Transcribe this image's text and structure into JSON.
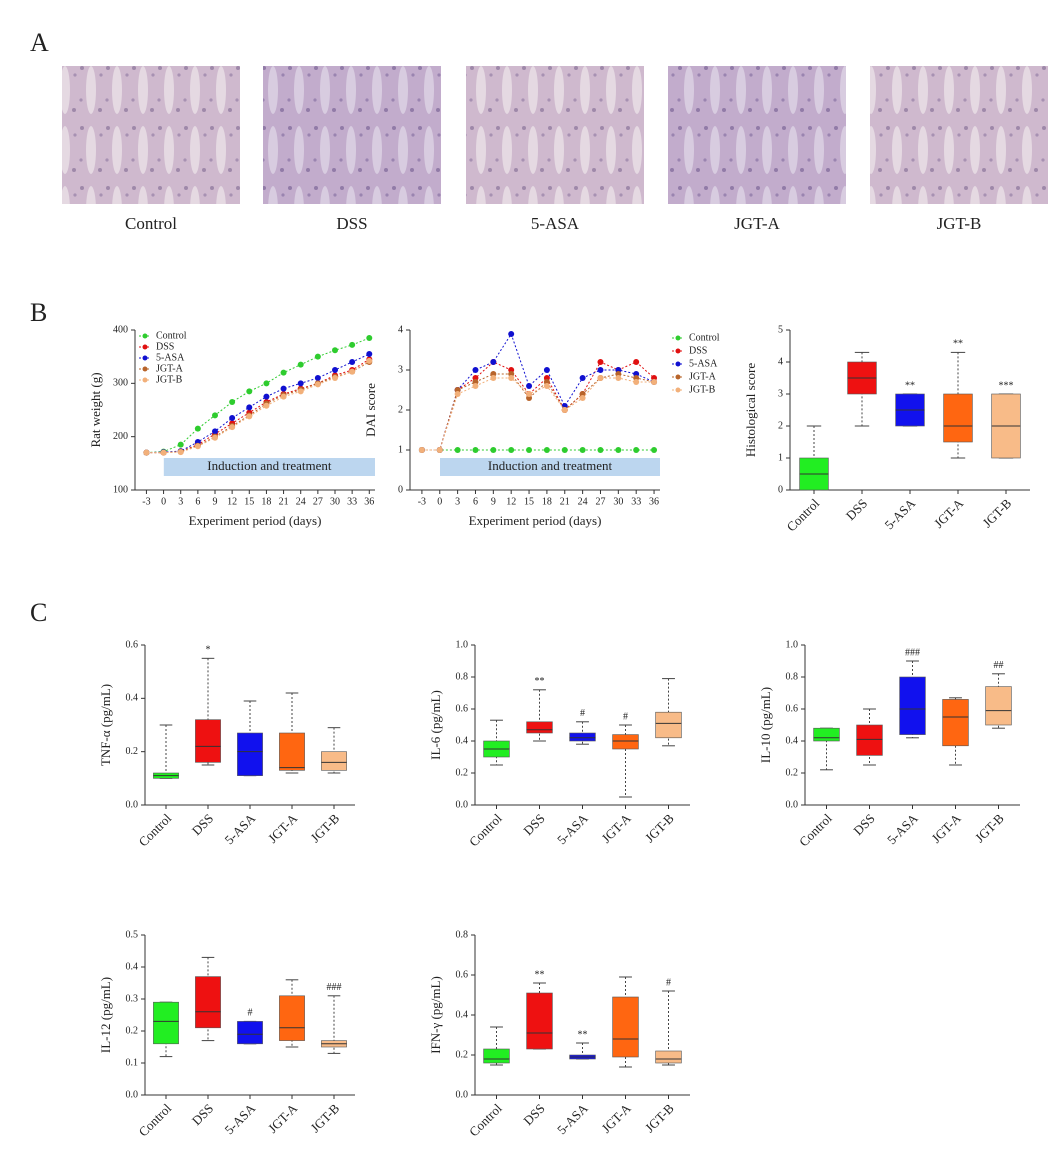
{
  "panel_labels": {
    "a": "A",
    "b": "B",
    "c": "C"
  },
  "histology": [
    {
      "label": "Control"
    },
    {
      "label": "DSS"
    },
    {
      "label": "5-ASA"
    },
    {
      "label": "JGT-A"
    },
    {
      "label": "JGT-B"
    }
  ],
  "chart_data": [
    {
      "type": "line",
      "ylabel": "Rat weight (g)",
      "xlabel": "Experiment period (days)",
      "annotation": "Induction and treatment",
      "x": [
        -3,
        0,
        3,
        6,
        9,
        12,
        15,
        18,
        21,
        24,
        27,
        30,
        33,
        36
      ],
      "xlim": [
        -5,
        37
      ],
      "xticks": [
        -3,
        0,
        3,
        6,
        9,
        12,
        15,
        18,
        21,
        24,
        27,
        30,
        33,
        36
      ],
      "ylim": [
        100,
        400
      ],
      "yticks": [
        100,
        200,
        300,
        400
      ],
      "legend": "upper left",
      "series": [
        {
          "name": "Control",
          "color": "#2ecc2e",
          "values": [
            170,
            172,
            185,
            215,
            240,
            265,
            285,
            300,
            320,
            335,
            350,
            362,
            372,
            385
          ]
        },
        {
          "name": "DSS",
          "color": "#e01010",
          "values": [
            170,
            170,
            172,
            185,
            205,
            225,
            245,
            265,
            280,
            290,
            300,
            315,
            325,
            345
          ]
        },
        {
          "name": "5-ASA",
          "color": "#1010d0",
          "values": [
            170,
            171,
            173,
            190,
            210,
            235,
            255,
            275,
            290,
            300,
            310,
            325,
            340,
            355
          ]
        },
        {
          "name": "JGT-A",
          "color": "#b8642a",
          "values": [
            170,
            170,
            172,
            183,
            200,
            220,
            240,
            262,
            278,
            288,
            300,
            312,
            322,
            340
          ]
        },
        {
          "name": "JGT-B",
          "color": "#f2b07a",
          "values": [
            170,
            170,
            171,
            182,
            198,
            218,
            238,
            258,
            275,
            285,
            298,
            310,
            322,
            342
          ]
        }
      ]
    },
    {
      "type": "line",
      "ylabel": "DAI score",
      "xlabel": "Experiment period (days)",
      "annotation": "Induction and treatment",
      "x": [
        -3,
        0,
        3,
        6,
        9,
        12,
        15,
        18,
        21,
        24,
        27,
        30,
        33,
        36
      ],
      "xlim": [
        -5,
        37
      ],
      "xticks": [
        -3,
        0,
        3,
        6,
        9,
        12,
        15,
        18,
        21,
        24,
        27,
        30,
        33,
        36
      ],
      "ylim": [
        0,
        4
      ],
      "yticks": [
        0,
        1,
        2,
        3,
        4
      ],
      "legend": "right",
      "series": [
        {
          "name": "Control",
          "color": "#2ecc2e",
          "values": [
            1,
            1,
            1,
            1,
            1,
            1,
            1,
            1,
            1,
            1,
            1,
            1,
            1,
            1
          ]
        },
        {
          "name": "DSS",
          "color": "#e01010",
          "values": [
            1,
            1,
            2.5,
            2.8,
            3.2,
            3.0,
            2.4,
            2.8,
            2.0,
            2.4,
            3.2,
            3.0,
            3.2,
            2.8
          ]
        },
        {
          "name": "5-ASA",
          "color": "#1010d0",
          "values": [
            1,
            1,
            2.5,
            3.0,
            3.2,
            3.9,
            2.6,
            3.0,
            2.1,
            2.8,
            3.0,
            3.0,
            2.9,
            2.7
          ]
        },
        {
          "name": "JGT-A",
          "color": "#b8642a",
          "values": [
            1,
            1,
            2.5,
            2.7,
            2.9,
            2.9,
            2.3,
            2.7,
            2.0,
            2.4,
            2.8,
            2.9,
            2.8,
            2.7
          ]
        },
        {
          "name": "JGT-B",
          "color": "#f2b07a",
          "values": [
            1,
            1,
            2.4,
            2.6,
            2.8,
            2.8,
            2.4,
            2.6,
            2.0,
            2.3,
            2.8,
            2.8,
            2.7,
            2.7
          ]
        }
      ]
    },
    {
      "type": "box",
      "ylabel": "Histological score",
      "categories": [
        "Control",
        "DSS",
        "5-ASA",
        "JGT-A",
        "JGT-B"
      ],
      "colors": [
        "#22ee22",
        "#ee1111",
        "#1111ee",
        "#ff6611",
        "#f8bb88"
      ],
      "ylim": [
        0,
        5
      ],
      "yticks": [
        0,
        1,
        2,
        3,
        4,
        5
      ],
      "boxes": [
        {
          "min": 0,
          "q1": 0,
          "median": 0.5,
          "q3": 1,
          "max": 2
        },
        {
          "min": 2,
          "q1": 3,
          "median": 3.5,
          "q3": 4,
          "max": 4.3
        },
        {
          "min": 2,
          "q1": 2,
          "median": 2.5,
          "q3": 3,
          "max": 3,
          "mark": "**"
        },
        {
          "min": 1,
          "q1": 1.5,
          "median": 2,
          "q3": 3,
          "max": 4.3,
          "mark": "**"
        },
        {
          "min": 1,
          "q1": 1,
          "median": 2,
          "q3": 3,
          "max": 3,
          "mark": "***"
        }
      ]
    },
    {
      "type": "box",
      "ylabel": "TNF-α (pg/mL)",
      "categories": [
        "Control",
        "DSS",
        "5-ASA",
        "JGT-A",
        "JGT-B"
      ],
      "colors": [
        "#22ee22",
        "#ee1111",
        "#1111ee",
        "#ff6611",
        "#f8bb88"
      ],
      "ylim": [
        0,
        0.6
      ],
      "yticks": [
        {
          "value": 0,
          "label": "0.0"
        },
        {
          "value": 0.2,
          "label": "0.2"
        },
        {
          "value": 0.4,
          "label": "0.4"
        },
        {
          "value": 0.6,
          "label": "0.6"
        }
      ],
      "boxes": [
        {
          "min": 0.1,
          "q1": 0.1,
          "median": 0.11,
          "q3": 0.12,
          "max": 0.3
        },
        {
          "min": 0.15,
          "q1": 0.16,
          "median": 0.22,
          "q3": 0.32,
          "max": 0.55,
          "mark": "*"
        },
        {
          "min": 0.11,
          "q1": 0.11,
          "median": 0.2,
          "q3": 0.27,
          "max": 0.39
        },
        {
          "min": 0.12,
          "q1": 0.13,
          "median": 0.14,
          "q3": 0.27,
          "max": 0.42
        },
        {
          "min": 0.12,
          "q1": 0.13,
          "median": 0.16,
          "q3": 0.2,
          "max": 0.29
        }
      ]
    },
    {
      "type": "box",
      "ylabel": "IL-6 (pg/mL)",
      "categories": [
        "Control",
        "DSS",
        "5-ASA",
        "JGT-A",
        "JGT-B"
      ],
      "colors": [
        "#22ee22",
        "#ee1111",
        "#1111ee",
        "#ff6611",
        "#f8bb88"
      ],
      "ylim": [
        0,
        1
      ],
      "yticks": [
        {
          "value": 0,
          "label": "0.0"
        },
        0.2,
        0.4,
        0.6,
        0.8,
        {
          "value": 1,
          "label": "1.0"
        }
      ],
      "boxes": [
        {
          "min": 0.25,
          "q1": 0.3,
          "median": 0.35,
          "q3": 0.4,
          "max": 0.53
        },
        {
          "min": 0.4,
          "q1": 0.45,
          "median": 0.47,
          "q3": 0.52,
          "max": 0.72,
          "mark": "**"
        },
        {
          "min": 0.38,
          "q1": 0.4,
          "median": 0.42,
          "q3": 0.45,
          "max": 0.52,
          "mark": "#"
        },
        {
          "min": 0.05,
          "q1": 0.35,
          "median": 0.4,
          "q3": 0.44,
          "max": 0.5,
          "mark": "#"
        },
        {
          "min": 0.37,
          "q1": 0.42,
          "median": 0.51,
          "q3": 0.58,
          "max": 0.79
        }
      ]
    },
    {
      "type": "box",
      "ylabel": "IL-10 (pg/mL)",
      "categories": [
        "Control",
        "DSS",
        "5-ASA",
        "JGT-A",
        "JGT-B"
      ],
      "colors": [
        "#22ee22",
        "#ee1111",
        "#1111ee",
        "#ff6611",
        "#f8bb88"
      ],
      "ylim": [
        0,
        1
      ],
      "yticks": [
        {
          "value": 0,
          "label": "0.0"
        },
        0.2,
        0.4,
        0.6,
        0.8,
        {
          "value": 1,
          "label": "1.0"
        }
      ],
      "boxes": [
        {
          "min": 0.22,
          "q1": 0.4,
          "median": 0.42,
          "q3": 0.48,
          "max": 0.48
        },
        {
          "min": 0.25,
          "q1": 0.31,
          "median": 0.41,
          "q3": 0.5,
          "max": 0.6
        },
        {
          "min": 0.42,
          "q1": 0.44,
          "median": 0.6,
          "q3": 0.8,
          "max": 0.9,
          "mark": "###"
        },
        {
          "min": 0.25,
          "q1": 0.37,
          "median": 0.55,
          "q3": 0.66,
          "max": 0.67
        },
        {
          "min": 0.48,
          "q1": 0.5,
          "median": 0.59,
          "q3": 0.74,
          "max": 0.82,
          "mark": "##"
        }
      ]
    },
    {
      "type": "box",
      "ylabel": "IL-12 (pg/mL)",
      "categories": [
        "Control",
        "DSS",
        "5-ASA",
        "JGT-A",
        "JGT-B"
      ],
      "colors": [
        "#22ee22",
        "#ee1111",
        "#1111ee",
        "#ff6611",
        "#f8bb88"
      ],
      "ylim": [
        0,
        0.5
      ],
      "yticks": [
        {
          "value": 0,
          "label": "0.0"
        },
        0.1,
        0.2,
        0.3,
        0.4,
        0.5
      ],
      "boxes": [
        {
          "min": 0.12,
          "q1": 0.16,
          "median": 0.23,
          "q3": 0.29,
          "max": 0.29
        },
        {
          "min": 0.17,
          "q1": 0.21,
          "median": 0.26,
          "q3": 0.37,
          "max": 0.43
        },
        {
          "min": 0.16,
          "q1": 0.16,
          "median": 0.19,
          "q3": 0.23,
          "max": 0.23,
          "mark": "#"
        },
        {
          "min": 0.15,
          "q1": 0.17,
          "median": 0.21,
          "q3": 0.31,
          "max": 0.36
        },
        {
          "min": 0.13,
          "q1": 0.15,
          "median": 0.16,
          "q3": 0.17,
          "max": 0.31,
          "mark": "###"
        }
      ]
    },
    {
      "type": "box",
      "ylabel": "IFN-γ (pg/mL)",
      "categories": [
        "Control",
        "DSS",
        "5-ASA",
        "JGT-A",
        "JGT-B"
      ],
      "colors": [
        "#22ee22",
        "#ee1111",
        "#1111ee",
        "#ff6611",
        "#f8bb88"
      ],
      "ylim": [
        0,
        0.8
      ],
      "yticks": [
        {
          "value": 0,
          "label": "0.0"
        },
        0.2,
        0.4,
        0.6,
        0.8
      ],
      "boxes": [
        {
          "min": 0.15,
          "q1": 0.16,
          "median": 0.18,
          "q3": 0.23,
          "max": 0.34
        },
        {
          "min": 0.23,
          "q1": 0.23,
          "median": 0.31,
          "q3": 0.51,
          "max": 0.56,
          "mark": "**"
        },
        {
          "min": 0.18,
          "q1": 0.18,
          "median": 0.19,
          "q3": 0.2,
          "max": 0.26,
          "mark": "**"
        },
        {
          "min": 0.14,
          "q1": 0.19,
          "median": 0.28,
          "q3": 0.49,
          "max": 0.59
        },
        {
          "min": 0.15,
          "q1": 0.16,
          "median": 0.18,
          "q3": 0.22,
          "max": 0.52,
          "mark": "#"
        }
      ]
    }
  ]
}
